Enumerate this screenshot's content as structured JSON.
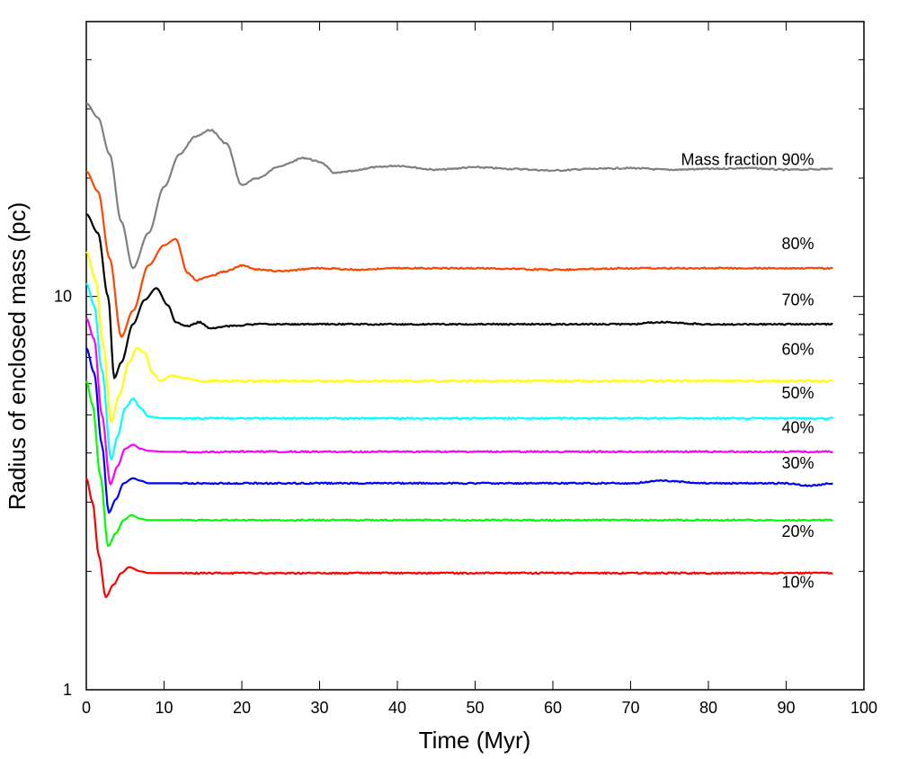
{
  "chart_data": {
    "type": "line",
    "title": "",
    "xlabel": "Time (Myr)",
    "ylabel": "Radius of enclosed mass (pc)",
    "xlim": [
      0,
      100
    ],
    "ylim": [
      1,
      50
    ],
    "yscale": "log",
    "grid": false,
    "x_ticks": [
      "0",
      "10",
      "20",
      "30",
      "40",
      "50",
      "60",
      "70",
      "80",
      "90",
      "100"
    ],
    "y_ticks": [
      "1",
      "10"
    ],
    "series": [
      {
        "name": "Mass fraction 90%",
        "color": "#808080",
        "points": [
          [
            0,
            31.0
          ],
          [
            1.5,
            28.5
          ],
          [
            3,
            23.0
          ],
          [
            4.5,
            15.5
          ],
          [
            6,
            11.8
          ],
          [
            8,
            14.5
          ],
          [
            10,
            19.0
          ],
          [
            12,
            23.0
          ],
          [
            14,
            25.5
          ],
          [
            16,
            26.5
          ],
          [
            18,
            24.5
          ],
          [
            20,
            19.2
          ],
          [
            22,
            20.0
          ],
          [
            25,
            21.5
          ],
          [
            28,
            22.5
          ],
          [
            30,
            22.0
          ],
          [
            32,
            20.6
          ],
          [
            34,
            20.8
          ],
          [
            37,
            21.3
          ],
          [
            40,
            21.5
          ],
          [
            45,
            21.0
          ],
          [
            50,
            21.3
          ],
          [
            55,
            21.1
          ],
          [
            60,
            20.9
          ],
          [
            65,
            21.1
          ],
          [
            70,
            21.2
          ],
          [
            75,
            21.0
          ],
          [
            80,
            21.1
          ],
          [
            85,
            21.2
          ],
          [
            90,
            21.0
          ],
          [
            96,
            21.1
          ]
        ]
      },
      {
        "name": "80%",
        "color": "#ff4500",
        "points": [
          [
            0,
            20.8
          ],
          [
            1.5,
            18.5
          ],
          [
            3,
            12.5
          ],
          [
            4.5,
            7.9
          ],
          [
            6,
            9.2
          ],
          [
            8,
            12.0
          ],
          [
            10,
            13.5
          ],
          [
            11.5,
            14.0
          ],
          [
            13,
            11.5
          ],
          [
            14.2,
            11.0
          ],
          [
            16,
            11.3
          ],
          [
            18,
            11.6
          ],
          [
            20,
            12.0
          ],
          [
            22,
            11.7
          ],
          [
            25,
            11.6
          ],
          [
            30,
            11.8
          ],
          [
            35,
            11.7
          ],
          [
            40,
            11.8
          ],
          [
            50,
            11.8
          ],
          [
            60,
            11.7
          ],
          [
            70,
            11.8
          ],
          [
            80,
            11.8
          ],
          [
            90,
            11.8
          ],
          [
            96,
            11.8
          ]
        ]
      },
      {
        "name": "70%",
        "color": "#000000",
        "points": [
          [
            0,
            16.2
          ],
          [
            1.5,
            14.5
          ],
          [
            2.8,
            10.0
          ],
          [
            3.6,
            6.2
          ],
          [
            4.5,
            6.8
          ],
          [
            6,
            8.5
          ],
          [
            7.5,
            9.8
          ],
          [
            9,
            10.5
          ],
          [
            10.5,
            9.5
          ],
          [
            11.5,
            8.6
          ],
          [
            13,
            8.4
          ],
          [
            14.5,
            8.6
          ],
          [
            16,
            8.3
          ],
          [
            18,
            8.4
          ],
          [
            22,
            8.5
          ],
          [
            30,
            8.5
          ],
          [
            40,
            8.5
          ],
          [
            50,
            8.5
          ],
          [
            60,
            8.5
          ],
          [
            70,
            8.5
          ],
          [
            74,
            8.6
          ],
          [
            80,
            8.5
          ],
          [
            90,
            8.5
          ],
          [
            96,
            8.5
          ]
        ]
      },
      {
        "name": "60%",
        "color": "#ffff00",
        "points": [
          [
            0,
            13.0
          ],
          [
            1.2,
            11.0
          ],
          [
            2.2,
            7.5
          ],
          [
            3.2,
            4.8
          ],
          [
            4.2,
            5.6
          ],
          [
            5.5,
            6.8
          ],
          [
            6.5,
            7.4
          ],
          [
            7.5,
            7.2
          ],
          [
            8.5,
            6.4
          ],
          [
            9.5,
            6.1
          ],
          [
            11,
            6.3
          ],
          [
            12.5,
            6.2
          ],
          [
            15,
            6.1
          ],
          [
            20,
            6.1
          ],
          [
            30,
            6.1
          ],
          [
            40,
            6.1
          ],
          [
            50,
            6.1
          ],
          [
            60,
            6.1
          ],
          [
            70,
            6.1
          ],
          [
            80,
            6.1
          ],
          [
            90,
            6.1
          ],
          [
            96,
            6.1
          ]
        ]
      },
      {
        "name": "50%",
        "color": "#00ffff",
        "points": [
          [
            0,
            10.8
          ],
          [
            1,
            9.5
          ],
          [
            2,
            6.5
          ],
          [
            3.2,
            3.85
          ],
          [
            4,
            4.4
          ],
          [
            5,
            5.2
          ],
          [
            6,
            5.5
          ],
          [
            7,
            5.2
          ],
          [
            8,
            4.95
          ],
          [
            10,
            4.9
          ],
          [
            15,
            4.9
          ],
          [
            20,
            4.9
          ],
          [
            30,
            4.9
          ],
          [
            40,
            4.9
          ],
          [
            50,
            4.9
          ],
          [
            60,
            4.9
          ],
          [
            70,
            4.9
          ],
          [
            80,
            4.9
          ],
          [
            90,
            4.9
          ],
          [
            96,
            4.9
          ]
        ]
      },
      {
        "name": "40%",
        "color": "#ff00ff",
        "points": [
          [
            0,
            8.8
          ],
          [
            1,
            7.8
          ],
          [
            2,
            5.0
          ],
          [
            3.1,
            3.33
          ],
          [
            4,
            3.7
          ],
          [
            5,
            4.1
          ],
          [
            6,
            4.2
          ],
          [
            7,
            4.1
          ],
          [
            8,
            4.05
          ],
          [
            10,
            4.03
          ],
          [
            15,
            4.02
          ],
          [
            20,
            4.03
          ],
          [
            30,
            4.03
          ],
          [
            40,
            4.03
          ],
          [
            50,
            4.03
          ],
          [
            60,
            4.03
          ],
          [
            70,
            4.03
          ],
          [
            80,
            4.03
          ],
          [
            90,
            4.03
          ],
          [
            96,
            4.03
          ]
        ]
      },
      {
        "name": "30%",
        "color": "#0000ff",
        "points": [
          [
            0,
            7.4
          ],
          [
            1,
            6.4
          ],
          [
            2,
            4.2
          ],
          [
            2.9,
            2.82
          ],
          [
            3.8,
            3.05
          ],
          [
            4.8,
            3.35
          ],
          [
            6,
            3.45
          ],
          [
            7,
            3.4
          ],
          [
            8,
            3.35
          ],
          [
            10,
            3.35
          ],
          [
            15,
            3.35
          ],
          [
            20,
            3.35
          ],
          [
            30,
            3.35
          ],
          [
            40,
            3.35
          ],
          [
            50,
            3.35
          ],
          [
            60,
            3.35
          ],
          [
            70,
            3.35
          ],
          [
            74,
            3.4
          ],
          [
            80,
            3.35
          ],
          [
            90,
            3.35
          ],
          [
            93,
            3.3
          ],
          [
            96,
            3.35
          ]
        ]
      },
      {
        "name": "20%",
        "color": "#00ff00",
        "points": [
          [
            0,
            6.1
          ],
          [
            0.8,
            5.3
          ],
          [
            1.8,
            3.5
          ],
          [
            2.8,
            2.32
          ],
          [
            3.8,
            2.5
          ],
          [
            4.8,
            2.7
          ],
          [
            5.8,
            2.78
          ],
          [
            7,
            2.72
          ],
          [
            8,
            2.7
          ],
          [
            10,
            2.7
          ],
          [
            15,
            2.7
          ],
          [
            20,
            2.7
          ],
          [
            30,
            2.7
          ],
          [
            40,
            2.7
          ],
          [
            50,
            2.7
          ],
          [
            60,
            2.7
          ],
          [
            70,
            2.7
          ],
          [
            80,
            2.7
          ],
          [
            90,
            2.7
          ],
          [
            96,
            2.7
          ]
        ]
      },
      {
        "name": "10%",
        "color": "#ff0000",
        "points": [
          [
            0,
            3.45
          ],
          [
            0.8,
            3.0
          ],
          [
            1.6,
            2.2
          ],
          [
            2.5,
            1.72
          ],
          [
            3.5,
            1.85
          ],
          [
            4.5,
            1.98
          ],
          [
            5.5,
            2.05
          ],
          [
            7,
            2.0
          ],
          [
            8,
            1.98
          ],
          [
            10,
            1.98
          ],
          [
            15,
            1.98
          ],
          [
            20,
            1.98
          ],
          [
            30,
            1.98
          ],
          [
            40,
            1.98
          ],
          [
            50,
            1.98
          ],
          [
            60,
            1.98
          ],
          [
            70,
            1.98
          ],
          [
            80,
            1.98
          ],
          [
            90,
            1.98
          ],
          [
            96,
            1.98
          ]
        ]
      }
    ],
    "series_labels": [
      {
        "text": "Mass fraction 90%",
        "x": 90,
        "y": 21.6
      },
      {
        "text": "80%",
        "x": 90,
        "y": 13.2
      },
      {
        "text": "70%",
        "x": 90,
        "y": 9.5
      },
      {
        "text": "60%",
        "x": 90,
        "y": 7.1
      },
      {
        "text": "50%",
        "x": 90,
        "y": 5.5
      },
      {
        "text": "40%",
        "x": 90,
        "y": 4.5
      },
      {
        "text": "30%",
        "x": 90,
        "y": 3.65
      },
      {
        "text": "20%",
        "x": 90,
        "y": 2.45
      },
      {
        "text": "10%",
        "x": 90,
        "y": 1.82
      }
    ]
  }
}
